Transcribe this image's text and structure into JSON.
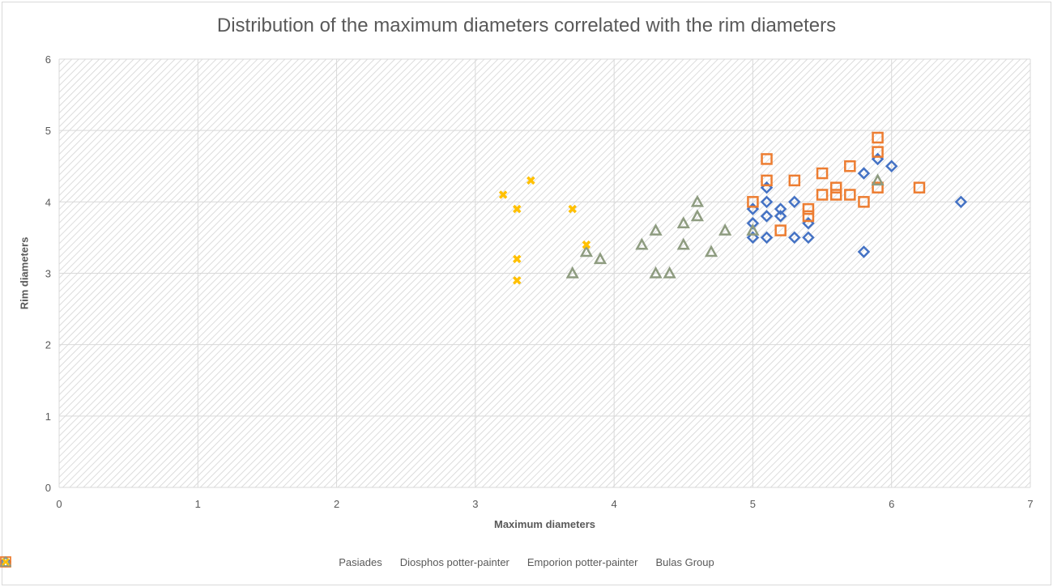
{
  "chart_data": {
    "type": "scatter",
    "title": "Distribution of the maximum diameters correlated with the rim diameters",
    "xlabel": "Maximum diameters",
    "ylabel": "Rim diameters",
    "xlim": [
      0,
      7
    ],
    "ylim": [
      0,
      6
    ],
    "xticks": [
      0,
      1,
      2,
      3,
      4,
      5,
      6,
      7
    ],
    "yticks": [
      0,
      1,
      2,
      3,
      4,
      5,
      6
    ],
    "grid": true,
    "legend": "bottom",
    "series": [
      {
        "name": "Pasiades",
        "marker": "diamond",
        "color": "#4472C4",
        "points": [
          [
            5,
            3.9
          ],
          [
            5,
            3.7
          ],
          [
            5,
            3.5
          ],
          [
            5.1,
            4.2
          ],
          [
            5.1,
            4.0
          ],
          [
            5.1,
            3.8
          ],
          [
            5.1,
            3.5
          ],
          [
            5.2,
            3.9
          ],
          [
            5.2,
            3.8
          ],
          [
            5.3,
            4.0
          ],
          [
            5.3,
            3.5
          ],
          [
            5.4,
            3.7
          ],
          [
            5.4,
            3.5
          ],
          [
            5.8,
            4.4
          ],
          [
            5.8,
            3.3
          ],
          [
            5.9,
            4.6
          ],
          [
            6.0,
            4.5
          ],
          [
            6.5,
            4.0
          ]
        ]
      },
      {
        "name": "Diosphos potter-painter",
        "marker": "square",
        "color": "#ED7D31",
        "points": [
          [
            5.0,
            4.0
          ],
          [
            5.1,
            4.6
          ],
          [
            5.1,
            4.3
          ],
          [
            5.2,
            3.6
          ],
          [
            5.3,
            4.3
          ],
          [
            5.4,
            3.9
          ],
          [
            5.4,
            3.8
          ],
          [
            5.5,
            4.4
          ],
          [
            5.5,
            4.1
          ],
          [
            5.6,
            4.2
          ],
          [
            5.6,
            4.1
          ],
          [
            5.7,
            4.5
          ],
          [
            5.7,
            4.1
          ],
          [
            5.8,
            4.0
          ],
          [
            5.9,
            4.9
          ],
          [
            5.9,
            4.7
          ],
          [
            5.9,
            4.2
          ],
          [
            6.2,
            4.2
          ]
        ]
      },
      {
        "name": "Emporion potter-painter",
        "marker": "triangle",
        "color": "#8E9C80",
        "points": [
          [
            3.7,
            3.0
          ],
          [
            3.8,
            3.3
          ],
          [
            3.9,
            3.2
          ],
          [
            4.2,
            3.4
          ],
          [
            4.3,
            3.6
          ],
          [
            4.3,
            3.0
          ],
          [
            4.4,
            3.0
          ],
          [
            4.5,
            3.7
          ],
          [
            4.5,
            3.4
          ],
          [
            4.6,
            4.0
          ],
          [
            4.6,
            3.8
          ],
          [
            4.7,
            3.3
          ],
          [
            4.8,
            3.6
          ],
          [
            5.0,
            3.6
          ],
          [
            5.9,
            4.3
          ]
        ]
      },
      {
        "name": "Bulas Group",
        "marker": "x",
        "color": "#FFC000",
        "points": [
          [
            3.2,
            4.1
          ],
          [
            3.3,
            3.9
          ],
          [
            3.3,
            3.2
          ],
          [
            3.3,
            2.9
          ],
          [
            3.4,
            4.3
          ],
          [
            3.7,
            3.9
          ],
          [
            3.8,
            3.4
          ]
        ]
      }
    ]
  }
}
